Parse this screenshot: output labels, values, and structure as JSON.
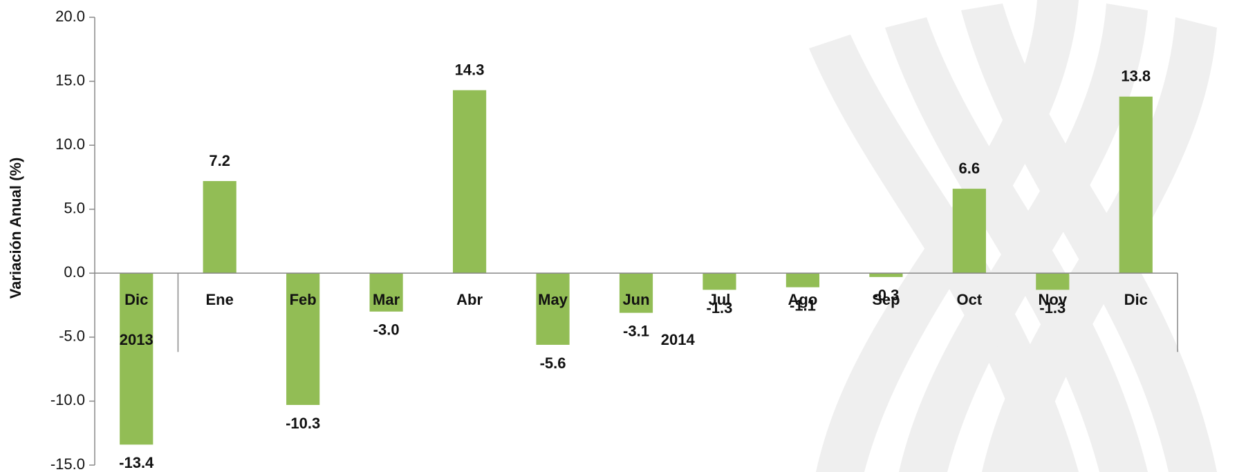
{
  "chart_data": {
    "type": "bar",
    "ylabel": "Variación  Anual  (%)",
    "categories": [
      "Dic",
      "Ene",
      "Feb",
      "Mar",
      "Abr",
      "May",
      "Jun",
      "Jul",
      "Ago",
      "Sep",
      "Oct",
      "Nov",
      "Dic"
    ],
    "values": [
      -13.4,
      7.2,
      -10.3,
      -3.0,
      14.3,
      -5.6,
      -3.1,
      -1.3,
      -1.1,
      -0.3,
      6.6,
      -1.3,
      13.8
    ],
    "value_labels": [
      "-13.4",
      "7.2",
      "-10.3",
      "-3.0",
      "14.3",
      "-5.6",
      "-3.1",
      "-1.3",
      "-1.1",
      "-0.3",
      "6.6",
      "-1.3",
      "13.8"
    ],
    "groups": [
      {
        "label": "2013",
        "count": 1
      },
      {
        "label": "2014",
        "count": 12
      }
    ],
    "color": "#92bd55",
    "ylim": [
      -15,
      20
    ],
    "yticks": [
      {
        "value": 20,
        "label": "20.0"
      },
      {
        "value": 15,
        "label": "15.0"
      },
      {
        "value": 10,
        "label": "10.0"
      },
      {
        "value": 5,
        "label": "5.0"
      },
      {
        "value": 0,
        "label": "0.0"
      },
      {
        "value": -5,
        "label": "-5.0"
      },
      {
        "value": -10,
        "label": "-10.0"
      },
      {
        "value": -15,
        "label": "-15.0"
      }
    ],
    "grid": false
  }
}
